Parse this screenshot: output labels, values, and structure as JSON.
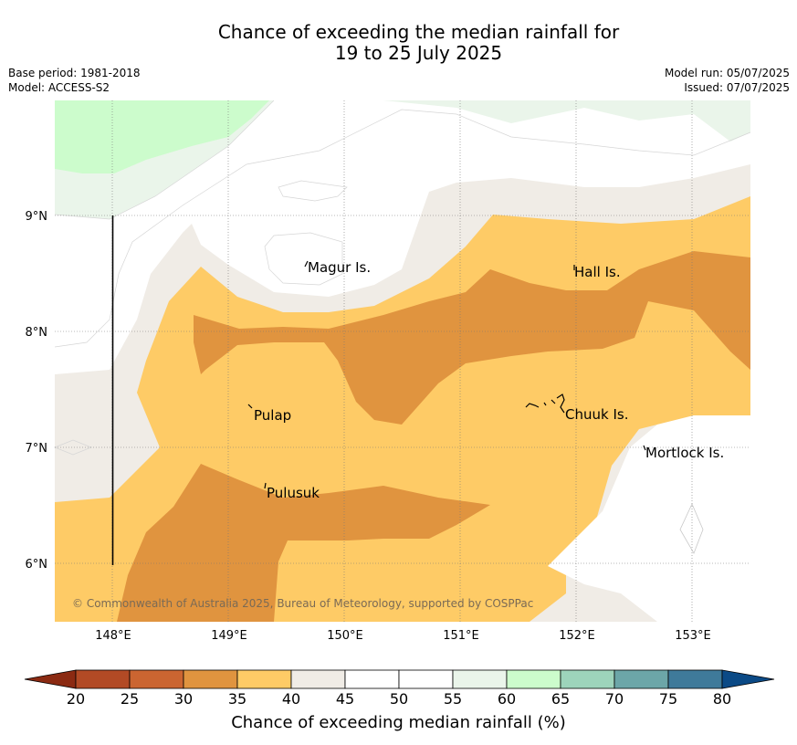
{
  "title_line1": "Chance of exceeding the median rainfall for",
  "title_line2": "19 to 25 July 2025",
  "base_period": "Base period: 1981-2018",
  "model": "Model: ACCESS-S2",
  "model_run": "Model run: 05/07/2025",
  "issued": "Issued: 07/07/2025",
  "lon_labels": [
    "148°E",
    "149°E",
    "150°E",
    "151°E",
    "152°E",
    "153°E"
  ],
  "lat_labels": [
    "9°N",
    "8°N",
    "7°N",
    "6°N"
  ],
  "places": {
    "magur": "Magur Is.",
    "hall": "Hall Is.",
    "pulap": "Pulap",
    "chuuk": "Chuuk Is.",
    "mortlock": "Mortlock Is.",
    "pulusuk": "Pulusuk"
  },
  "copyright": "© Commonwealth of Australia 2025, Bureau of Meteorology, supported by COSPPac",
  "colorbar": {
    "title": "Chance of exceeding median rainfall (%)",
    "ticks": [
      "20",
      "25",
      "30",
      "35",
      "40",
      "45",
      "50",
      "55",
      "60",
      "65",
      "70",
      "75",
      "80"
    ],
    "colors": [
      "#8b2a12",
      "#b24a25",
      "#cb6531",
      "#e0943f",
      "#fecb66",
      "#f0ece6",
      "#ffffff",
      "#ffffff",
      "#eaf5ea",
      "#ccfccc",
      "#9dd4bb",
      "#6ca6a8",
      "#3f7a9a",
      "#0b4a86"
    ]
  }
}
